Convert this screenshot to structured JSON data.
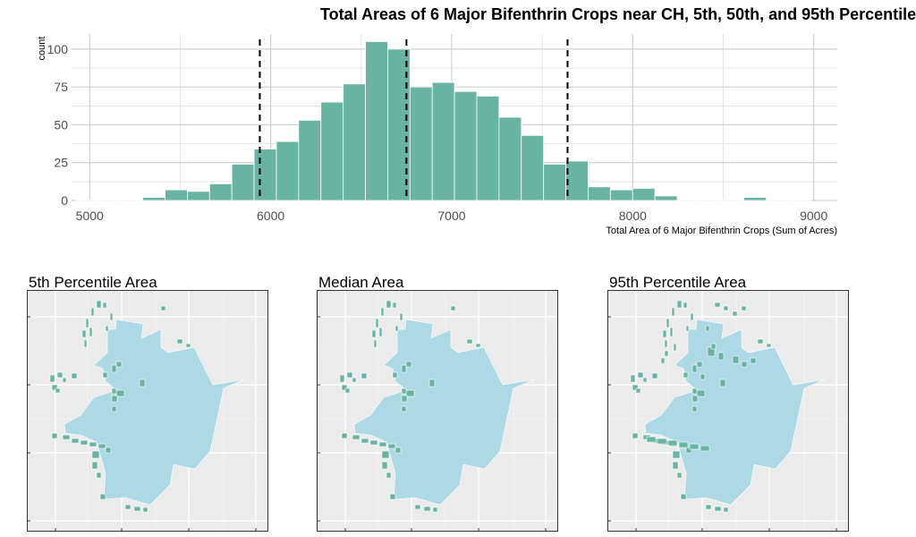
{
  "chart_data": [
    {
      "type": "bar",
      "title": "Total Areas of 6 Major Bifenthrin Crops near CH, 5th, 50th, and 95th Percentile",
      "xlabel": "Total Area of 6 Major Bifenthrin Crops (Sum of Acres)",
      "ylabel": "count",
      "xlim": [
        4900,
        9130
      ],
      "ylim": [
        0,
        110
      ],
      "x_ticks": [
        5000,
        6000,
        7000,
        8000,
        9000
      ],
      "y_ticks": [
        0,
        25,
        50,
        75,
        100
      ],
      "grid": true,
      "bar_color": "#69B3A2",
      "bin_width": 123,
      "bins": [
        {
          "x": 4986,
          "count": 0
        },
        {
          "x": 5109,
          "count": 0
        },
        {
          "x": 5232,
          "count": 0
        },
        {
          "x": 5355,
          "count": 2
        },
        {
          "x": 5478,
          "count": 7
        },
        {
          "x": 5601,
          "count": 6
        },
        {
          "x": 5724,
          "count": 11
        },
        {
          "x": 5847,
          "count": 24
        },
        {
          "x": 5970,
          "count": 34
        },
        {
          "x": 6093,
          "count": 39
        },
        {
          "x": 6216,
          "count": 53
        },
        {
          "x": 6339,
          "count": 65
        },
        {
          "x": 6462,
          "count": 77
        },
        {
          "x": 6585,
          "count": 105
        },
        {
          "x": 6708,
          "count": 100
        },
        {
          "x": 6831,
          "count": 75
        },
        {
          "x": 6954,
          "count": 78
        },
        {
          "x": 7077,
          "count": 72
        },
        {
          "x": 7200,
          "count": 69
        },
        {
          "x": 7323,
          "count": 55
        },
        {
          "x": 7446,
          "count": 43
        },
        {
          "x": 7569,
          "count": 24
        },
        {
          "x": 7692,
          "count": 26
        },
        {
          "x": 7815,
          "count": 9
        },
        {
          "x": 7938,
          "count": 7
        },
        {
          "x": 8061,
          "count": 8
        },
        {
          "x": 8184,
          "count": 3
        },
        {
          "x": 8307,
          "count": 0
        },
        {
          "x": 8430,
          "count": 0
        },
        {
          "x": 8553,
          "count": 0
        },
        {
          "x": 8676,
          "count": 2
        },
        {
          "x": 8799,
          "count": 0
        },
        {
          "x": 8922,
          "count": 0
        }
      ],
      "vlines": [
        5940,
        6750,
        7640
      ]
    },
    {
      "type": "map",
      "title": "5th Percentile Area",
      "city_color": "#ADD8E6",
      "crop_color": "#69B3A2"
    },
    {
      "type": "map",
      "title": "Median Area",
      "city_color": "#ADD8E6",
      "crop_color": "#69B3A2"
    },
    {
      "type": "map",
      "title": "95th Percentile Area",
      "city_color": "#ADD8E6",
      "crop_color": "#69B3A2"
    }
  ]
}
